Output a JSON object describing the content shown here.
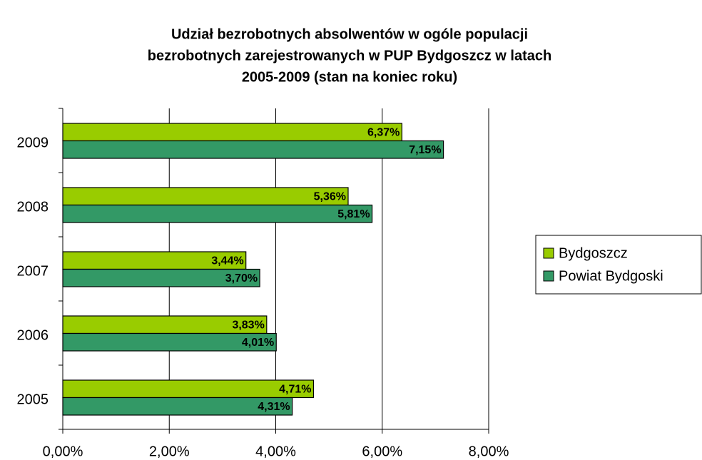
{
  "chart_data": {
    "type": "hbar",
    "title": [
      "Udział bezrobotnych absolwentów w ogóle populacji",
      "bezrobotnych zarejestrowanych w PUP Bydgoszcz w latach",
      "2005-2009 (stan na koniec roku)"
    ],
    "categories": [
      "2009",
      "2008",
      "2007",
      "2006",
      "2005"
    ],
    "series": [
      {
        "name": "Bydgoszcz",
        "color": "#99cc00",
        "values": [
          6.37,
          5.36,
          3.44,
          3.83,
          4.71
        ],
        "value_labels": [
          "6,37%",
          "5,36%",
          "3,44%",
          "3,83%",
          "4,71%"
        ]
      },
      {
        "name": "Powiat Bydgoski",
        "color": "#339966",
        "values": [
          7.15,
          5.81,
          3.7,
          4.01,
          4.31
        ],
        "value_labels": [
          "7,15%",
          "5,81%",
          "3,70%",
          "4,01%",
          "4,31%"
        ]
      }
    ],
    "xlim": [
      0,
      8
    ],
    "xticks": [
      {
        "value": 0,
        "label": "0,00%"
      },
      {
        "value": 2,
        "label": "2,00%"
      },
      {
        "value": 4,
        "label": "4,00%"
      },
      {
        "value": 6,
        "label": "6,00%"
      },
      {
        "value": 8,
        "label": "8,00%"
      }
    ],
    "grid": true,
    "legend": "right"
  }
}
